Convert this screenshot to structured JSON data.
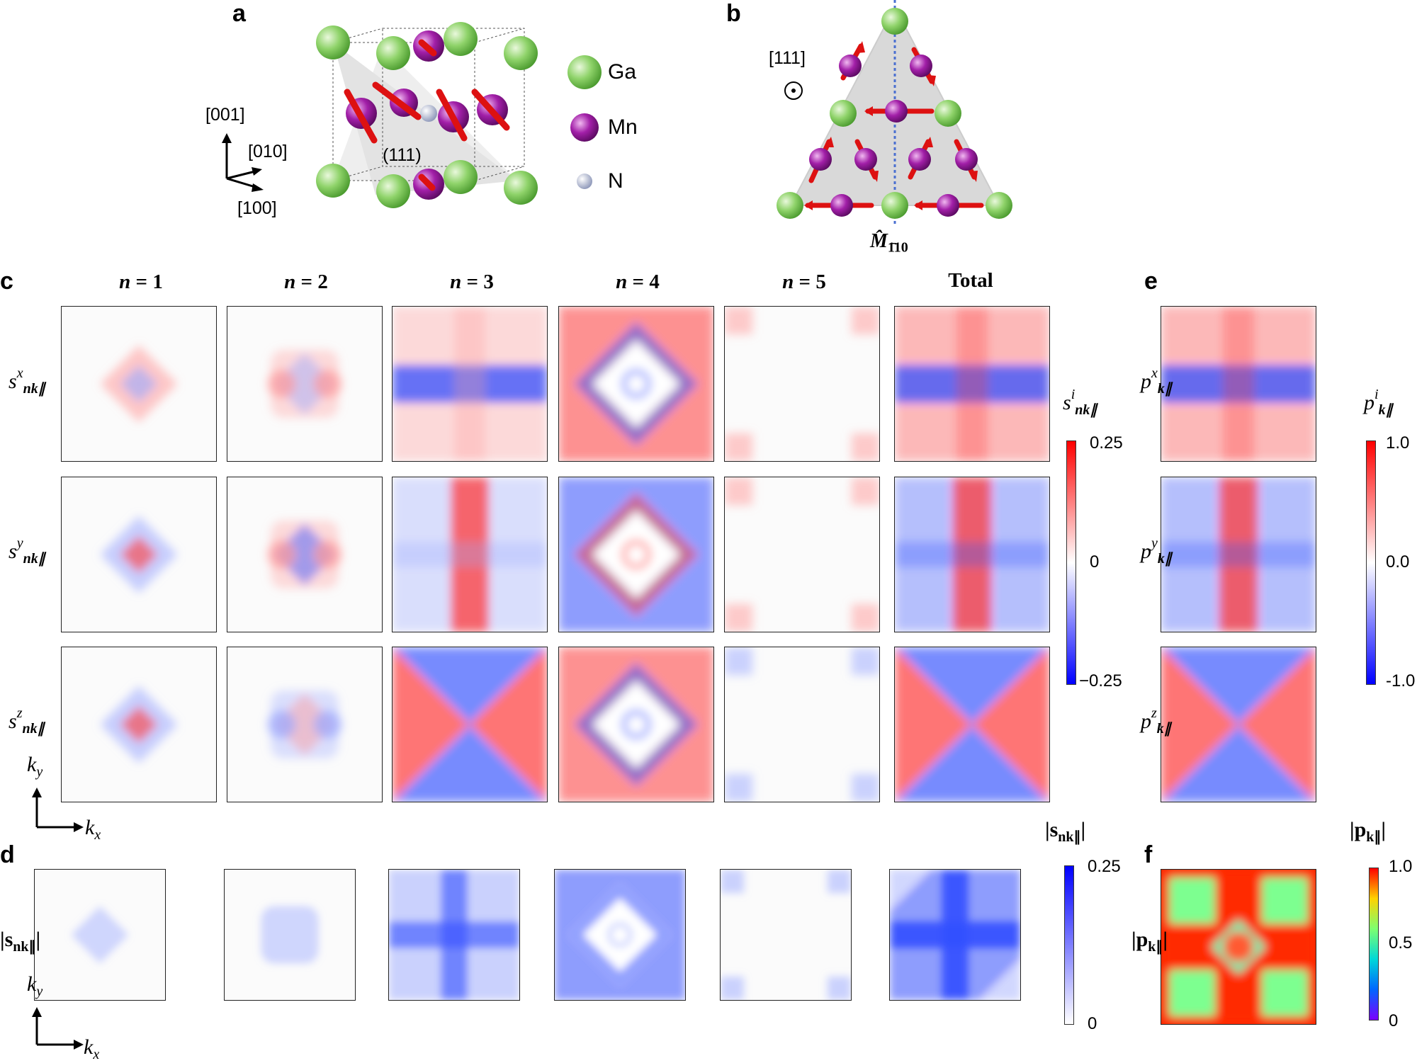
{
  "panel_labels": {
    "a": "a",
    "b": "b",
    "c": "c",
    "d": "d",
    "e": "e",
    "f": "f"
  },
  "panel_a": {
    "axes": {
      "z": "[001]",
      "y": "[010]",
      "x": "[100]"
    },
    "plane_label": "(111)",
    "legend": [
      {
        "element": "Ga",
        "color": "#7ccb5a"
      },
      {
        "element": "Mn",
        "color": "#9b1fa0"
      },
      {
        "element": "N",
        "color": "#a9b4cf"
      }
    ]
  },
  "panel_b": {
    "direction": "[111]",
    "mirror_label": "M̂",
    "mirror_sub": "1̄10"
  },
  "columns": {
    "n1": {
      "pre": "n",
      "post": " = 1"
    },
    "n2": {
      "pre": "n",
      "post": " = 2"
    },
    "n3": {
      "pre": "n",
      "post": " = 3"
    },
    "n4": {
      "pre": "n",
      "post": " = 4"
    },
    "n5": {
      "pre": "n",
      "post": " = 5"
    },
    "total": "Total"
  },
  "rows_c": {
    "x": {
      "base": "s",
      "sup": "x",
      "sub": "nk∥"
    },
    "y": {
      "base": "s",
      "sup": "y",
      "sub": "nk∥"
    },
    "z": {
      "base": "s",
      "sup": "z",
      "sub": "nk∥"
    }
  },
  "row_d": {
    "label": "|s",
    "sub": "nk∥",
    "end": "|"
  },
  "rows_e": {
    "x": {
      "base": "p",
      "sup": "x",
      "sub": "k∥"
    },
    "y": {
      "base": "p",
      "sup": "y",
      "sub": "k∥"
    },
    "z": {
      "base": "p",
      "sup": "z",
      "sub": "k∥"
    }
  },
  "row_f": {
    "label": "|p",
    "sub": "k∥",
    "end": "|"
  },
  "colorbars": {
    "s_component": {
      "title_base": "s",
      "title_sup": "i",
      "title_sub": "nk∥",
      "ticks": [
        "0.25",
        "0",
        "−0.25"
      ],
      "colors": [
        "#ff0000",
        "#ffffff",
        "#0000ff"
      ]
    },
    "s_magnitude": {
      "title_base": "|s",
      "title_sub": "nk∥",
      "title_end": "|",
      "ticks": [
        "0.25",
        "0"
      ],
      "colors": [
        "#0000ff",
        "#ffffff"
      ]
    },
    "p_component": {
      "title_base": "p",
      "title_sup": "i",
      "title_sub": "k∥",
      "ticks": [
        "1.0",
        "0.0",
        "-1.0"
      ],
      "colors": [
        "#ff0000",
        "#ffffff",
        "#0000ff"
      ]
    },
    "p_magnitude": {
      "title_base": "|p",
      "title_sub": "k∥",
      "title_end": "|",
      "ticks": [
        "1.0",
        "0.5",
        "0"
      ],
      "colors": [
        "#ff0000",
        "#00d8d8",
        "#7b00ff"
      ]
    }
  },
  "kaxes": {
    "kx": "k",
    "kx_sub": "x",
    "ky": "k",
    "ky_sub": "y"
  }
}
